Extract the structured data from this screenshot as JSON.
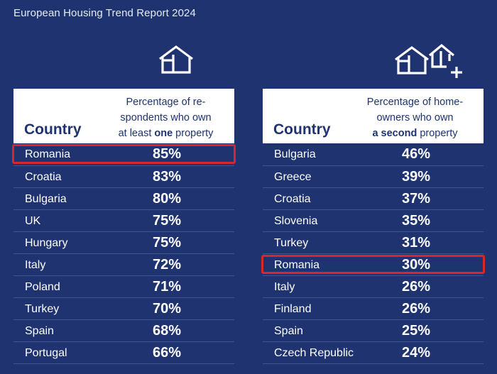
{
  "report_title": "European Housing Trend Report 2024",
  "chart_data": [
    {
      "type": "table",
      "columns": [
        "Country",
        "Percentage of respondents who own at least one property"
      ],
      "header": {
        "country": "Country",
        "desc_line1": "Percentage of re-",
        "desc_line2": "spondents who own",
        "desc_line3_pre": "at least ",
        "desc_line3_bold": "one",
        "desc_line3_post": " property"
      },
      "icon": "house-icon",
      "highlighted_row": "Romania",
      "rows": [
        {
          "country": "Romania",
          "value": "85%"
        },
        {
          "country": "Croatia",
          "value": "83%"
        },
        {
          "country": "Bulgaria",
          "value": "80%"
        },
        {
          "country": "UK",
          "value": "75%"
        },
        {
          "country": "Hungary",
          "value": "75%"
        },
        {
          "country": "Italy",
          "value": "72%"
        },
        {
          "country": "Poland",
          "value": "71%"
        },
        {
          "country": "Turkey",
          "value": "70%"
        },
        {
          "country": "Spain",
          "value": "68%"
        },
        {
          "country": "Portugal",
          "value": "66%"
        }
      ]
    },
    {
      "type": "table",
      "columns": [
        "Country",
        "Percentage of homeowners who own a second property"
      ],
      "header": {
        "country": "Country",
        "desc_line1": "Percentage of home-",
        "desc_line2": "owners who own",
        "desc_line3_pre": "",
        "desc_line3_bold": "a second",
        "desc_line3_post": " property"
      },
      "icon": "second-house-plus-icon",
      "highlighted_row": "Romania",
      "rows": [
        {
          "country": "Bulgaria",
          "value": "46%"
        },
        {
          "country": "Greece",
          "value": "39%"
        },
        {
          "country": "Croatia",
          "value": "37%"
        },
        {
          "country": "Slovenia",
          "value": "35%"
        },
        {
          "country": "Turkey",
          "value": "31%"
        },
        {
          "country": "Romania",
          "value": "30%"
        },
        {
          "country": "Italy",
          "value": "26%"
        },
        {
          "country": "Finland",
          "value": "26%"
        },
        {
          "country": "Spain",
          "value": "25%"
        },
        {
          "country": "Czech Republic",
          "value": "24%"
        }
      ]
    }
  ],
  "colors": {
    "background": "#1e3370",
    "header_bg": "#ffffff",
    "header_text": "#1e3370",
    "highlight": "#d8262b",
    "row_divider": "#3f5591"
  }
}
